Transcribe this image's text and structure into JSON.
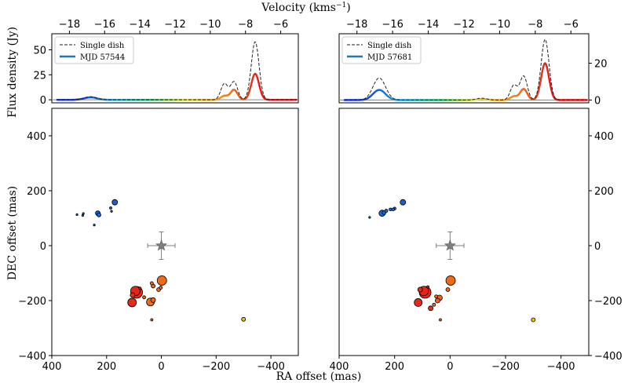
{
  "chart_data": {
    "type": "scatter",
    "figure_labels": {
      "top_xlabel": "Velocity (kms",
      "top_xlabel_sup": "−1",
      "top_xlabel_end": ")",
      "spec_ylabel": "Flux density (Jy)",
      "map_ylabel": "DEC offset (mas)",
      "map_xlabel": "RA offset (mas)"
    },
    "velocity_axis": {
      "range": [
        -19,
        -5
      ],
      "ticks": [
        -18,
        -16,
        -14,
        -12,
        -10,
        -8,
        -6
      ],
      "tick_labels": [
        "−18",
        "−16",
        "−14",
        "−12",
        "−10",
        "−8",
        "−6"
      ]
    },
    "map_axis": {
      "xlim": [
        400,
        -500
      ],
      "ylim": [
        -400,
        500
      ],
      "xticks": [
        400,
        200,
        0,
        -200,
        -400
      ],
      "xtick_labels": [
        "400",
        "200",
        "0",
        "−200",
        "−400"
      ],
      "yticks": [
        400,
        200,
        0,
        -200,
        -400
      ],
      "ytick_labels": [
        "400",
        "200",
        "0",
        "−200",
        "−400"
      ]
    },
    "star": {
      "x": 0,
      "y": 0,
      "xerr": 50,
      "yerr": 50,
      "color": "#808080"
    },
    "color_scale": {
      "min_velocity": -17.5,
      "max_velocity": -7.2,
      "stops": [
        "#1a3ed6",
        "#18a8e0",
        "#20c070",
        "#e6e020",
        "#f28a1a",
        "#e41a1a"
      ]
    },
    "panels": [
      {
        "legend": {
          "single_dish": "Single dish",
          "epoch": "MJD 57544"
        },
        "spectrum": {
          "ylim": [
            -3,
            66
          ],
          "yticks": [
            0,
            25,
            50
          ],
          "ytick_labels": [
            "0",
            "25",
            "50"
          ],
          "tick_side": "left",
          "single_dish": [
            {
              "v": -7.45,
              "amp": 58,
              "w": 0.22
            },
            {
              "v": -8.65,
              "amp": 18,
              "w": 0.2
            },
            {
              "v": -9.2,
              "amp": 16,
              "w": 0.2
            },
            {
              "v": -16.8,
              "amp": 3,
              "w": 0.35
            }
          ],
          "vlbi": [
            {
              "v": -7.45,
              "amp": 26,
              "w": 0.22
            },
            {
              "v": -8.65,
              "amp": 10,
              "w": 0.2
            },
            {
              "v": -9.2,
              "amp": 4,
              "w": 0.2
            },
            {
              "v": -16.8,
              "amp": 2.5,
              "w": 0.35
            }
          ]
        },
        "spots": [
          {
            "x": 170,
            "y": 158,
            "s": 3.5,
            "v": -16.9
          },
          {
            "x": 185,
            "y": 137,
            "s": 1.5,
            "v": -16.6
          },
          {
            "x": 182,
            "y": 125,
            "s": 1.2,
            "v": -16.5
          },
          {
            "x": 232,
            "y": 118,
            "s": 3.0,
            "v": -16.8
          },
          {
            "x": 228,
            "y": 112,
            "s": 2.5,
            "v": -16.7
          },
          {
            "x": 285,
            "y": 117,
            "s": 1.2,
            "v": -16.4
          },
          {
            "x": 287,
            "y": 110,
            "s": 1.2,
            "v": -16.3
          },
          {
            "x": 308,
            "y": 113,
            "s": 1.2,
            "v": -16.2
          },
          {
            "x": 245,
            "y": 75,
            "s": 1.2,
            "v": -16.4
          },
          {
            "x": -2,
            "y": -127,
            "s": 6.0,
            "v": -8.65
          },
          {
            "x": 90,
            "y": -170,
            "s": 7.5,
            "v": -7.45
          },
          {
            "x": 95,
            "y": -165,
            "s": 6.0,
            "v": -7.4
          },
          {
            "x": 105,
            "y": -180,
            "s": 3.0,
            "v": -7.6
          },
          {
            "x": 78,
            "y": -155,
            "s": 1.5,
            "v": -7.3
          },
          {
            "x": 107,
            "y": -207,
            "s": 5.5,
            "v": -7.5
          },
          {
            "x": 35,
            "y": -137,
            "s": 2.0,
            "v": -8.7
          },
          {
            "x": 30,
            "y": -147,
            "s": 2.5,
            "v": -8.6
          },
          {
            "x": 10,
            "y": -160,
            "s": 2.5,
            "v": -8.65
          },
          {
            "x": 2,
            "y": -153,
            "s": 2.0,
            "v": -8.6
          },
          {
            "x": 63,
            "y": -188,
            "s": 2.0,
            "v": -8.5
          },
          {
            "x": 40,
            "y": -205,
            "s": 5.0,
            "v": -8.65
          },
          {
            "x": 30,
            "y": -198,
            "s": 3.0,
            "v": -8.7
          },
          {
            "x": 35,
            "y": -270,
            "s": 1.5,
            "v": -8.6
          },
          {
            "x": -300,
            "y": -268,
            "s": 2.5,
            "v": -10.6
          }
        ]
      },
      {
        "legend": {
          "single_dish": "Single dish",
          "epoch": "MJD 57681"
        },
        "spectrum": {
          "ylim": [
            -1.5,
            36
          ],
          "yticks": [
            0,
            20
          ],
          "ytick_labels": [
            "0",
            "20"
          ],
          "tick_side": "right",
          "single_dish": [
            {
              "v": -7.45,
              "amp": 33,
              "w": 0.22
            },
            {
              "v": -8.65,
              "amp": 13,
              "w": 0.2
            },
            {
              "v": -9.2,
              "amp": 8,
              "w": 0.2
            },
            {
              "v": -16.75,
              "amp": 12,
              "w": 0.35
            },
            {
              "v": -11.0,
              "amp": 1,
              "w": 0.3
            }
          ],
          "vlbi": [
            {
              "v": -7.45,
              "amp": 20,
              "w": 0.22
            },
            {
              "v": -8.65,
              "amp": 6,
              "w": 0.2
            },
            {
              "v": -9.2,
              "amp": 2,
              "w": 0.2
            },
            {
              "v": -16.75,
              "amp": 5.5,
              "w": 0.35
            },
            {
              "v": -11.0,
              "amp": 0.5,
              "w": 0.3
            }
          ]
        },
        "spots": [
          {
            "x": 170,
            "y": 158,
            "s": 3.5,
            "v": -16.9
          },
          {
            "x": 200,
            "y": 135,
            "s": 1.8,
            "v": -16.6
          },
          {
            "x": 205,
            "y": 132,
            "s": 1.8,
            "v": -16.5
          },
          {
            "x": 215,
            "y": 132,
            "s": 1.8,
            "v": -16.7
          },
          {
            "x": 230,
            "y": 127,
            "s": 2.0,
            "v": -16.7
          },
          {
            "x": 238,
            "y": 120,
            "s": 2.5,
            "v": -16.8
          },
          {
            "x": 245,
            "y": 118,
            "s": 4.0,
            "v": -16.75
          },
          {
            "x": 290,
            "y": 103,
            "s": 1.2,
            "v": -16.2
          },
          {
            "x": -2,
            "y": -127,
            "s": 6.0,
            "v": -8.65
          },
          {
            "x": 90,
            "y": -170,
            "s": 7.5,
            "v": -7.45
          },
          {
            "x": 95,
            "y": -165,
            "s": 6.0,
            "v": -7.4
          },
          {
            "x": 108,
            "y": -160,
            "s": 3.0,
            "v": -7.5
          },
          {
            "x": 115,
            "y": -207,
            "s": 5.0,
            "v": -7.5
          },
          {
            "x": 80,
            "y": -150,
            "s": 1.5,
            "v": -7.3
          },
          {
            "x": 70,
            "y": -228,
            "s": 3.0,
            "v": -7.6
          },
          {
            "x": 45,
            "y": -200,
            "s": 3.0,
            "v": -8.5
          },
          {
            "x": 38,
            "y": -190,
            "s": 3.5,
            "v": -8.6
          },
          {
            "x": 50,
            "y": -185,
            "s": 2.0,
            "v": -8.5
          },
          {
            "x": 8,
            "y": -160,
            "s": 2.5,
            "v": -8.65
          },
          {
            "x": 58,
            "y": -215,
            "s": 2.0,
            "v": -8.7
          },
          {
            "x": 35,
            "y": -270,
            "s": 1.5,
            "v": -8.6
          },
          {
            "x": -300,
            "y": -270,
            "s": 2.5,
            "v": -10.6
          }
        ]
      }
    ]
  }
}
